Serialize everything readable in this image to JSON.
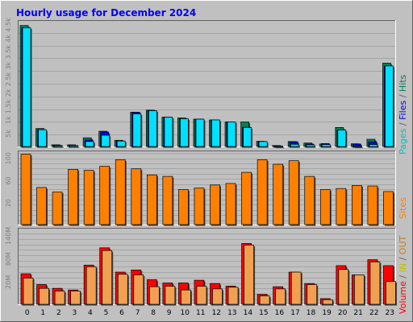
{
  "title": "Hourly usage for December 2024",
  "colors": {
    "background": "#c0c0c0",
    "title": "#0000ff",
    "pages": "#00c0c0",
    "pages_front": "#00e0ff",
    "files": "#0000ff",
    "files_back": "#1a3aa0",
    "hits": "#00805a",
    "sites": "#ff8000",
    "volume": "#ff0000",
    "in": "#c0c000",
    "out": "#f0a050",
    "out_label": "#c08020",
    "axis_label": "#808080"
  },
  "chart_data": [
    {
      "type": "bar",
      "panel": "hits",
      "categories": [
        "0",
        "1",
        "2",
        "3",
        "4",
        "5",
        "6",
        "7",
        "8",
        "9",
        "10",
        "11",
        "12",
        "13",
        "14",
        "15",
        "16",
        "17",
        "18",
        "19",
        "20",
        "21",
        "22",
        "23"
      ],
      "y_ticks": [
        "5k",
        "1k",
        "1.5k",
        "2k",
        "2.5k",
        "3k",
        "3.5k",
        "4k",
        "4.5k"
      ],
      "legend": {
        "pages": "Pages",
        "slash1": " / ",
        "files": "Files",
        "slash2": " / ",
        "hits": "Hits"
      },
      "ylim": [
        0,
        5000
      ],
      "series": [
        {
          "name": "Hits",
          "values": [
            4850,
            750,
            100,
            100,
            380,
            640,
            280,
            1400,
            1480,
            1200,
            1170,
            1120,
            1090,
            1010,
            1010,
            240,
            70,
            230,
            170,
            130,
            790,
            140,
            320,
            3350
          ]
        },
        {
          "name": "Files",
          "values": [
            4760,
            700,
            80,
            70,
            290,
            610,
            250,
            1390,
            1460,
            1200,
            1140,
            1120,
            1090,
            1010,
            800,
            230,
            55,
            220,
            130,
            150,
            690,
            130,
            220,
            3240
          ]
        },
        {
          "name": "Pages",
          "values": [
            4760,
            700,
            70,
            70,
            230,
            480,
            250,
            1330,
            1460,
            1200,
            1140,
            1120,
            1090,
            1010,
            790,
            230,
            45,
            120,
            100,
            110,
            690,
            45,
            110,
            3240
          ]
        }
      ]
    },
    {
      "type": "bar",
      "panel": "sites",
      "categories": [
        "0",
        "1",
        "2",
        "3",
        "4",
        "5",
        "6",
        "7",
        "8",
        "9",
        "10",
        "11",
        "12",
        "13",
        "14",
        "15",
        "16",
        "17",
        "18",
        "19",
        "20",
        "21",
        "22",
        "23"
      ],
      "y_ticks": [
        "20",
        "60",
        "100"
      ],
      "legend": {
        "sites": "Sites"
      },
      "ylim": [
        0,
        145
      ],
      "series": [
        {
          "name": "Sites",
          "values": [
            141,
            75,
            66,
            111,
            109,
            117,
            130,
            112,
            100,
            97,
            71,
            74,
            80,
            83,
            105,
            130,
            121,
            128,
            97,
            71,
            73,
            79,
            78,
            67
          ]
        }
      ]
    },
    {
      "type": "bar",
      "panel": "volume",
      "categories": [
        "0",
        "1",
        "2",
        "3",
        "4",
        "5",
        "6",
        "7",
        "8",
        "9",
        "10",
        "11",
        "12",
        "13",
        "14",
        "15",
        "16",
        "17",
        "18",
        "19",
        "20",
        "21",
        "22",
        "23"
      ],
      "y_ticks": [
        "20M",
        "80M",
        "140M"
      ],
      "legend": {
        "volume": "Volume",
        "slash1": " / ",
        "in": "IN",
        "slash2": " / ",
        "out": "OUT"
      },
      "ylim": [
        0,
        140
      ],
      "series": [
        {
          "name": "Volume",
          "values": [
            58,
            38,
            31,
            28,
            74,
            106,
            61,
            65,
            47,
            41,
            41,
            46,
            40,
            35,
            114,
            20,
            34,
            61,
            40,
            12,
            73,
            56,
            84,
            73
          ]
        },
        {
          "name": "OUT",
          "values": [
            50,
            31,
            26,
            26,
            71,
            101,
            57,
            56,
            34,
            35,
            28,
            35,
            30,
            33,
            111,
            17,
            30,
            61,
            38,
            10,
            66,
            56,
            80,
            44
          ]
        }
      ]
    }
  ]
}
